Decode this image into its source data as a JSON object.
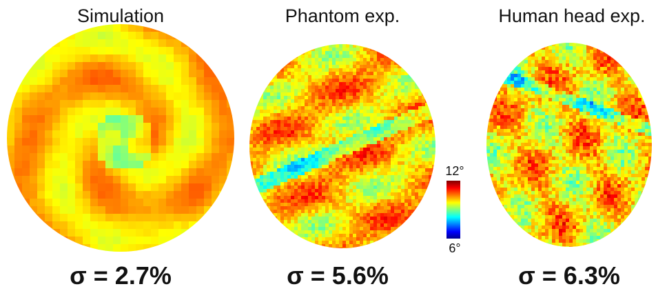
{
  "panels": [
    {
      "title": "Simulation",
      "sigma": "σ = 2.7%"
    },
    {
      "title": "Phantom exp.",
      "sigma": "σ = 5.6%"
    },
    {
      "title": "Human head exp.",
      "sigma": "σ = 6.3%"
    }
  ],
  "colorbar": {
    "max_label": "12°",
    "min_label": "6°"
  }
}
